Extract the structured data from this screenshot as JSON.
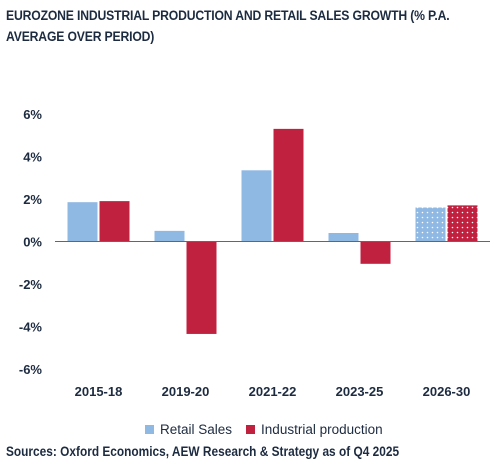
{
  "title": "EUROZONE INDUSTRIAL PRODUCTION AND RETAIL SALES GROWTH (% P.A. AVERAGE OVER PERIOD)",
  "source": "Sources: Oxford Economics, AEW Research & Strategy as of Q4 2025",
  "colors": {
    "retail": "#8fb8e3",
    "industrial": "#c0213f",
    "axis": "#666666",
    "text": "#1d2b40"
  },
  "chart_data": {
    "type": "bar",
    "categories": [
      "2015-18",
      "2019-20",
      "2021-22",
      "2023-25",
      "2026-30"
    ],
    "series": [
      {
        "name": "Retail Sales",
        "values": [
          1.85,
          0.5,
          3.35,
          0.4,
          1.6
        ]
      },
      {
        "name": "Industrial production",
        "values": [
          1.9,
          -4.35,
          5.3,
          -1.05,
          1.7
        ]
      }
    ],
    "forecast_categories": [
      "2026-30"
    ],
    "ylim": [
      -6,
      6
    ],
    "yticks": [
      6,
      4,
      2,
      0,
      -2,
      -4,
      -6
    ],
    "ytick_labels": [
      "6%",
      "4%",
      "2%",
      "0%",
      "-2%",
      "-4%",
      "-6%"
    ],
    "legend": "bottom",
    "grid": false
  }
}
